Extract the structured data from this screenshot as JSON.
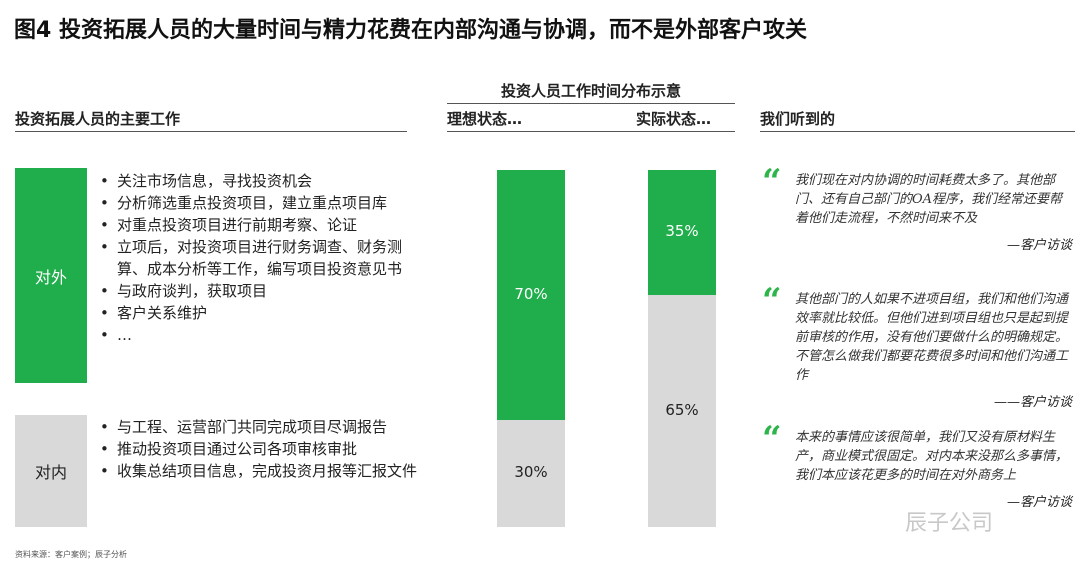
{
  "title": "图4 投资拓展人员的大量时间与精力花费在内部沟通与协调，而不是外部客户攻关",
  "left": {
    "header": "投资拓展人员的主要工作",
    "external": {
      "label": "对外",
      "items": [
        "关注市场信息，寻找投资机会",
        "分析筛选重点投资项目，建立重点项目库",
        "对重点投资项目进行前期考察、论证",
        "立项后，对投资项目进行财务调查、财务测算、成本分析等工作，编写项目投资意见书",
        "与政府谈判，获取项目",
        "客户关系维护",
        "…"
      ]
    },
    "internal": {
      "label": "对内",
      "items": [
        "与工程、运营部门共同完成项目尽调报告",
        "推动投资项目通过公司各项审核审批",
        "收集总结项目信息，完成投资月报等汇报文件"
      ]
    }
  },
  "chart_data": {
    "type": "bar",
    "stacked": true,
    "title": "投资人员工作时间分布示意",
    "categories": [
      "理想状态…",
      "实际状态…"
    ],
    "series": [
      {
        "key": "external",
        "color": "#1fae4b",
        "values": [
          70,
          35
        ]
      },
      {
        "key": "internal",
        "color": "#d9d9d9",
        "values": [
          30,
          65
        ]
      }
    ],
    "labels": [
      [
        "70%",
        "30%"
      ],
      [
        "35%",
        "65%"
      ]
    ],
    "ylim": [
      0,
      100
    ]
  },
  "right": {
    "header": "我们听到的",
    "quotes": [
      {
        "text": "我们现在对内协调的时间耗费太多了。其他部门、还有自己部门的OA程序，我们经常还要帮着他们走流程，不然时间来不及",
        "attr": "—客户访谈"
      },
      {
        "text": "其他部门的人如果不进项目组，我们和他们沟通效率就比较低。但他们进到项目组也只是起到提前审核的作用，没有他们要做什么的明确规定。不管怎么做我们都要花费很多时间和他们沟通工作",
        "attr": "——客户访谈"
      },
      {
        "text": "本来的事情应该很简单，我们又没有原材料生产，商业模式很固定。对内本来没那么多事情，我们本应该花更多的时间在对外商务上",
        "attr": "—客户访谈"
      }
    ]
  },
  "source": "资料来源：客户案例；辰子分析",
  "watermark": "辰子公司"
}
